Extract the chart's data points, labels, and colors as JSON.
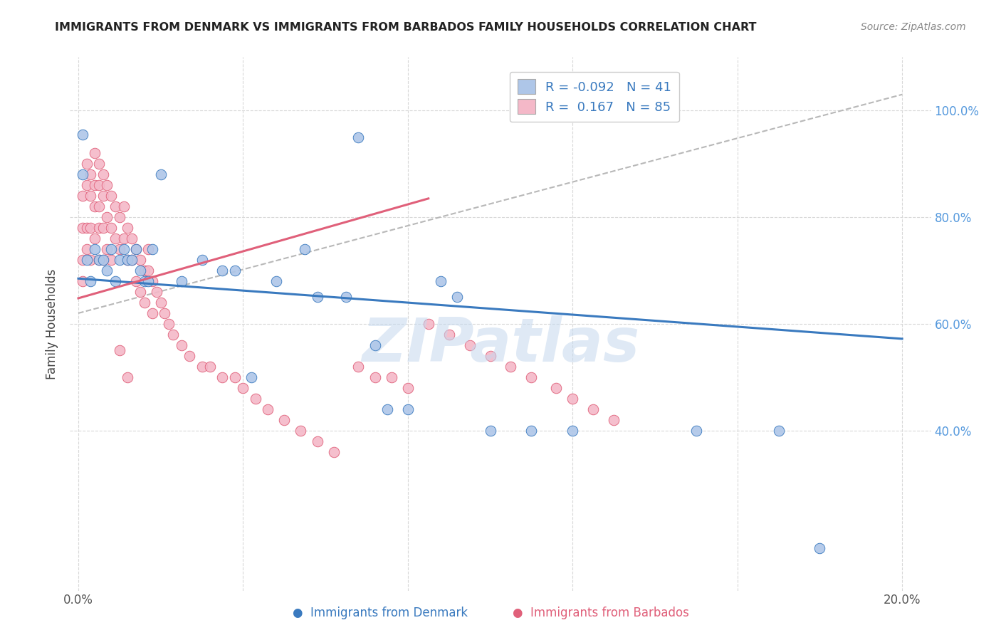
{
  "title": "IMMIGRANTS FROM DENMARK VS IMMIGRANTS FROM BARBADOS FAMILY HOUSEHOLDS CORRELATION CHART",
  "source": "Source: ZipAtlas.com",
  "ylabel": "Family Households",
  "color_denmark": "#aec6e8",
  "color_barbados": "#f4b8c8",
  "line_color_denmark": "#3a7abf",
  "line_color_barbados": "#e0607a",
  "watermark_color": "#c5d8ee",
  "denmark_line_x0": 0.0,
  "denmark_line_y0": 0.685,
  "denmark_line_x1": 0.2,
  "denmark_line_y1": 0.572,
  "barbados_line_x0": 0.0,
  "barbados_line_y0": 0.648,
  "barbados_line_x1": 0.085,
  "barbados_line_y1": 0.835,
  "dashed_line_x0": 0.0,
  "dashed_line_y0": 0.62,
  "dashed_line_x1": 0.2,
  "dashed_line_y1": 1.03,
  "ylim_low": 0.1,
  "ylim_high": 1.1,
  "xlim_low": -0.002,
  "xlim_high": 0.207,
  "ytick_positions": [
    0.4,
    0.6,
    0.8,
    1.0
  ],
  "ytick_labels": [
    "40.0%",
    "60.0%",
    "80.0%",
    "100.0%"
  ],
  "xtick_positions": [
    0.0,
    0.04,
    0.08,
    0.12,
    0.16,
    0.2
  ],
  "xtick_labels": [
    "0.0%",
    "",
    "",
    "",
    "",
    "20.0%"
  ],
  "legend_r_denmark": "-0.092",
  "legend_n_denmark": "41",
  "legend_r_barbados": " 0.167",
  "legend_n_barbados": "85",
  "dk_x": [
    0.001,
    0.001,
    0.002,
    0.003,
    0.004,
    0.005,
    0.006,
    0.007,
    0.008,
    0.009,
    0.01,
    0.011,
    0.012,
    0.013,
    0.014,
    0.015,
    0.016,
    0.017,
    0.018,
    0.02,
    0.025,
    0.03,
    0.035,
    0.038,
    0.042,
    0.048,
    0.055,
    0.058,
    0.065,
    0.072,
    0.075,
    0.08,
    0.088,
    0.092,
    0.1,
    0.11,
    0.12,
    0.15,
    0.17,
    0.18,
    0.068
  ],
  "dk_y": [
    0.955,
    0.88,
    0.72,
    0.68,
    0.74,
    0.72,
    0.72,
    0.7,
    0.74,
    0.68,
    0.72,
    0.74,
    0.72,
    0.72,
    0.74,
    0.7,
    0.68,
    0.68,
    0.74,
    0.88,
    0.68,
    0.72,
    0.7,
    0.7,
    0.5,
    0.68,
    0.74,
    0.65,
    0.65,
    0.56,
    0.44,
    0.44,
    0.68,
    0.65,
    0.4,
    0.4,
    0.4,
    0.4,
    0.4,
    0.18,
    0.95
  ],
  "bb_x": [
    0.001,
    0.001,
    0.001,
    0.001,
    0.002,
    0.002,
    0.002,
    0.002,
    0.003,
    0.003,
    0.003,
    0.003,
    0.004,
    0.004,
    0.004,
    0.004,
    0.005,
    0.005,
    0.005,
    0.005,
    0.005,
    0.006,
    0.006,
    0.006,
    0.006,
    0.007,
    0.007,
    0.007,
    0.008,
    0.008,
    0.008,
    0.009,
    0.009,
    0.01,
    0.01,
    0.011,
    0.011,
    0.012,
    0.012,
    0.013,
    0.013,
    0.014,
    0.014,
    0.015,
    0.015,
    0.016,
    0.016,
    0.017,
    0.017,
    0.018,
    0.018,
    0.019,
    0.02,
    0.021,
    0.022,
    0.023,
    0.025,
    0.027,
    0.03,
    0.032,
    0.035,
    0.038,
    0.04,
    0.043,
    0.046,
    0.05,
    0.054,
    0.058,
    0.062,
    0.068,
    0.072,
    0.076,
    0.08,
    0.085,
    0.09,
    0.095,
    0.1,
    0.105,
    0.11,
    0.116,
    0.12,
    0.125,
    0.13,
    0.01,
    0.012
  ],
  "bb_y": [
    0.84,
    0.78,
    0.72,
    0.68,
    0.9,
    0.86,
    0.78,
    0.74,
    0.88,
    0.84,
    0.78,
    0.72,
    0.92,
    0.86,
    0.82,
    0.76,
    0.9,
    0.86,
    0.82,
    0.78,
    0.72,
    0.88,
    0.84,
    0.78,
    0.72,
    0.86,
    0.8,
    0.74,
    0.84,
    0.78,
    0.72,
    0.82,
    0.76,
    0.8,
    0.74,
    0.82,
    0.76,
    0.78,
    0.72,
    0.76,
    0.72,
    0.74,
    0.68,
    0.72,
    0.66,
    0.7,
    0.64,
    0.74,
    0.7,
    0.68,
    0.62,
    0.66,
    0.64,
    0.62,
    0.6,
    0.58,
    0.56,
    0.54,
    0.52,
    0.52,
    0.5,
    0.5,
    0.48,
    0.46,
    0.44,
    0.42,
    0.4,
    0.38,
    0.36,
    0.52,
    0.5,
    0.5,
    0.48,
    0.6,
    0.58,
    0.56,
    0.54,
    0.52,
    0.5,
    0.48,
    0.46,
    0.44,
    0.42,
    0.55,
    0.5
  ]
}
